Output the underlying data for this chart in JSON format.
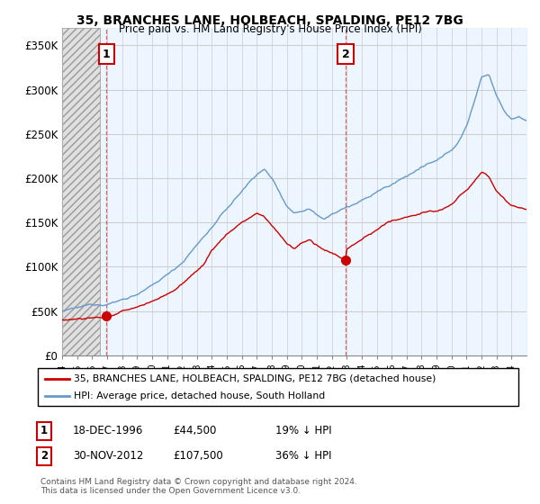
{
  "title": "35, BRANCHES LANE, HOLBEACH, SPALDING, PE12 7BG",
  "subtitle": "Price paid vs. HM Land Registry's House Price Index (HPI)",
  "legend_line1": "35, BRANCHES LANE, HOLBEACH, SPALDING, PE12 7BG (detached house)",
  "legend_line2": "HPI: Average price, detached house, South Holland",
  "footnote": "Contains HM Land Registry data © Crown copyright and database right 2024.\nThis data is licensed under the Open Government Licence v3.0.",
  "annotation1_date": "18-DEC-1996",
  "annotation1_price": "£44,500",
  "annotation1_hpi": "19% ↓ HPI",
  "annotation2_date": "30-NOV-2012",
  "annotation2_price": "£107,500",
  "annotation2_hpi": "36% ↓ HPI",
  "sale_color": "#cc0000",
  "hpi_color": "#6699cc",
  "hpi_fill_color": "#ddeeff",
  "ylim": [
    0,
    370000
  ],
  "yticks": [
    0,
    50000,
    100000,
    150000,
    200000,
    250000,
    300000,
    350000
  ],
  "ytick_labels": [
    "£0",
    "£50K",
    "£100K",
    "£150K",
    "£200K",
    "£250K",
    "£300K",
    "£350K"
  ],
  "sale1_x": 1996.96,
  "sale1_y": 44500,
  "sale2_x": 2012.92,
  "sale2_y": 107500,
  "xmin": 1994,
  "xmax": 2025,
  "hatch_end": 1996.5,
  "background_color": "#ffffff",
  "grid_color": "#cccccc"
}
